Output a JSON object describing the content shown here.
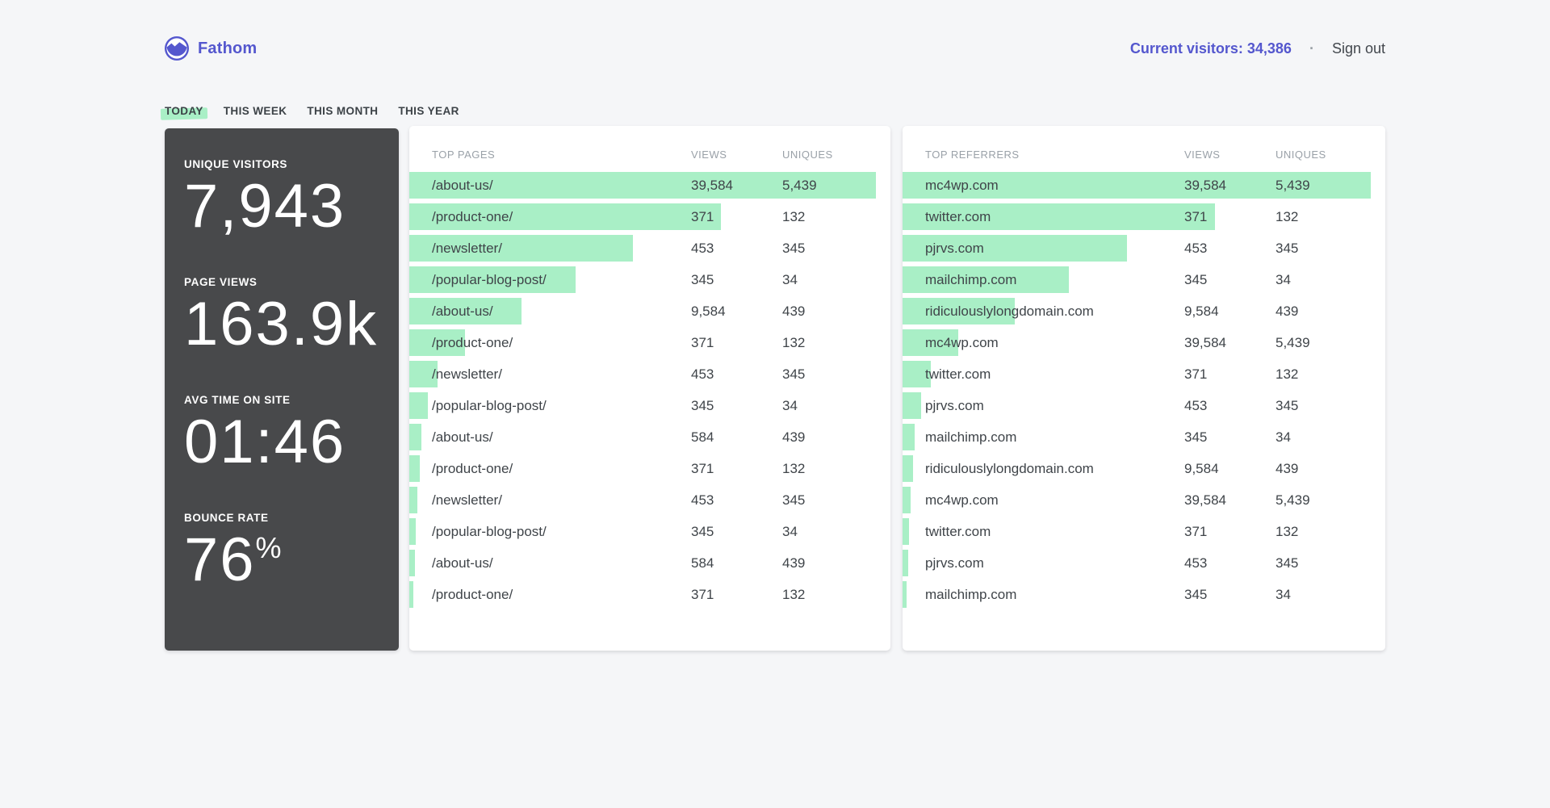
{
  "header": {
    "brand": "Fathom",
    "current_visitors_label": "Current visitors:",
    "current_visitors_value": "34,386",
    "current_visitors_text": "Current visitors: 34,386",
    "separator": "·",
    "sign_out": "Sign out"
  },
  "icons": {
    "logo": "mountain-circle-icon"
  },
  "colors": {
    "accent_purple": "#5457ce",
    "bar_mint_green": "#a9efc6",
    "stats_card_dark": "#48494b",
    "page_background": "#f5f6f8",
    "muted_header_gray": "#9aa1a8",
    "body_text": "#3f4449"
  },
  "tabs": [
    {
      "label": "TODAY",
      "active": true
    },
    {
      "label": "THIS WEEK",
      "active": false
    },
    {
      "label": "THIS MONTH",
      "active": false
    },
    {
      "label": "THIS YEAR",
      "active": false
    }
  ],
  "stats": [
    {
      "label": "UNIQUE VISITORS",
      "value": "7,943",
      "suffix": ""
    },
    {
      "label": "PAGE VIEWS",
      "value": "163.9k",
      "suffix": ""
    },
    {
      "label": "AVG TIME ON SITE",
      "value": "01:46",
      "suffix": ""
    },
    {
      "label": "BOUNCE RATE",
      "value": "76",
      "suffix": "%"
    }
  ],
  "pages_table": {
    "title": "TOP PAGES",
    "views_header": "VIEWS",
    "uniques_header": "UNIQUES",
    "rows": [
      {
        "label": "/about-us/",
        "views": "39,584",
        "uniques": "5,439",
        "bar": 97
      },
      {
        "label": "/product-one/",
        "views": "371",
        "uniques": "132",
        "bar": 64.7
      },
      {
        "label": "/newsletter/",
        "views": "453",
        "uniques": "345",
        "bar": 46.5
      },
      {
        "label": "/popular-blog-post/",
        "views": "345",
        "uniques": "34",
        "bar": 34.5
      },
      {
        "label": "/about-us/",
        "views": "9,584",
        "uniques": "439",
        "bar": 23.3
      },
      {
        "label": "/product-one/",
        "views": "371",
        "uniques": "132",
        "bar": 11.6
      },
      {
        "label": "/newsletter/",
        "views": "453",
        "uniques": "345",
        "bar": 5.9
      },
      {
        "label": "/popular-blog-post/",
        "views": "345",
        "uniques": "34",
        "bar": 3.9
      },
      {
        "label": "/about-us/",
        "views": "584",
        "uniques": "439",
        "bar": 2.5
      },
      {
        "label": "/product-one/",
        "views": "371",
        "uniques": "132",
        "bar": 2.1
      },
      {
        "label": "/newsletter/",
        "views": "453",
        "uniques": "345",
        "bar": 1.7
      },
      {
        "label": "/popular-blog-post/",
        "views": "345",
        "uniques": "34",
        "bar": 1.4
      },
      {
        "label": "/about-us/",
        "views": "584",
        "uniques": "439",
        "bar": 1.1
      },
      {
        "label": "/product-one/",
        "views": "371",
        "uniques": "132",
        "bar": 0.9
      }
    ]
  },
  "referrers_table": {
    "title": "TOP REFERRERS",
    "views_header": "VIEWS",
    "uniques_header": "UNIQUES",
    "rows": [
      {
        "label": "mc4wp.com",
        "views": "39,584",
        "uniques": "5,439",
        "bar": 97
      },
      {
        "label": "twitter.com",
        "views": "371",
        "uniques": "132",
        "bar": 64.7
      },
      {
        "label": "pjrvs.com",
        "views": "453",
        "uniques": "345",
        "bar": 46.5
      },
      {
        "label": "mailchimp.com",
        "views": "345",
        "uniques": "34",
        "bar": 34.5
      },
      {
        "label": "ridiculouslylongdomain.com",
        "views": "9,584",
        "uniques": "439",
        "bar": 23.3
      },
      {
        "label": "mc4wp.com",
        "views": "39,584",
        "uniques": "5,439",
        "bar": 11.6
      },
      {
        "label": "twitter.com",
        "views": "371",
        "uniques": "132",
        "bar": 5.9
      },
      {
        "label": "pjrvs.com",
        "views": "453",
        "uniques": "345",
        "bar": 3.9
      },
      {
        "label": "mailchimp.com",
        "views": "345",
        "uniques": "34",
        "bar": 2.5
      },
      {
        "label": "ridiculouslylongdomain.com",
        "views": "9,584",
        "uniques": "439",
        "bar": 2.1
      },
      {
        "label": "mc4wp.com",
        "views": "39,584",
        "uniques": "5,439",
        "bar": 1.7
      },
      {
        "label": "twitter.com",
        "views": "371",
        "uniques": "132",
        "bar": 1.4
      },
      {
        "label": "pjrvs.com",
        "views": "453",
        "uniques": "345",
        "bar": 1.1
      },
      {
        "label": "mailchimp.com",
        "views": "345",
        "uniques": "34",
        "bar": 0.9
      }
    ]
  }
}
